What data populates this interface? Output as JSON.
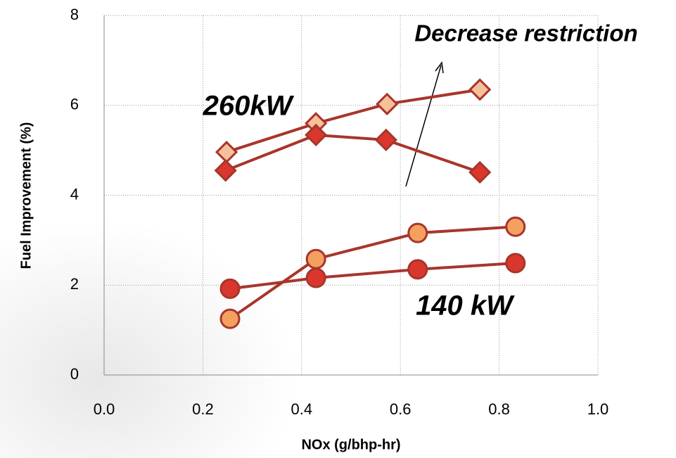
{
  "chart_data": {
    "type": "scatter-line",
    "x_label": "NOx (g/bhp-hr)",
    "y_label": "Fuel Improvement (%)",
    "annotations": [
      "Decrease restriction",
      "260kW",
      "140 kW"
    ],
    "xlim": [
      0,
      1
    ],
    "xticks": [
      {
        "value": 0,
        "label": "0.0"
      },
      0.2,
      0.4,
      0.6,
      0.8,
      {
        "value": 1,
        "label": "1.0"
      }
    ],
    "ylim": [
      0,
      8
    ],
    "yticks": [
      0,
      2,
      4,
      6,
      8
    ],
    "grid": true,
    "series": [
      {
        "marker": "diamond",
        "color": "#f6c09a",
        "line_color": "#a8352c",
        "x": [
          0.248,
          0.429,
          0.573,
          0.761
        ],
        "values": [
          4.96,
          5.6,
          6.03,
          6.35
        ]
      },
      {
        "marker": "diamond",
        "color": "#d9372e",
        "line_color": "#a8352c",
        "x": [
          0.246,
          0.429,
          0.571,
          0.761
        ],
        "values": [
          4.55,
          5.34,
          5.23,
          4.51
        ]
      },
      {
        "marker": "circle",
        "color": "#f4a15f",
        "line_color": "#a8352c",
        "x": [
          0.255,
          0.429,
          0.635,
          0.833
        ],
        "values": [
          1.25,
          2.58,
          3.16,
          3.3
        ]
      },
      {
        "marker": "circle",
        "color": "#d9372e",
        "line_color": "#a8352c",
        "x": [
          0.255,
          0.429,
          0.635,
          0.833
        ],
        "values": [
          1.92,
          2.16,
          2.35,
          2.49
        ]
      }
    ]
  }
}
